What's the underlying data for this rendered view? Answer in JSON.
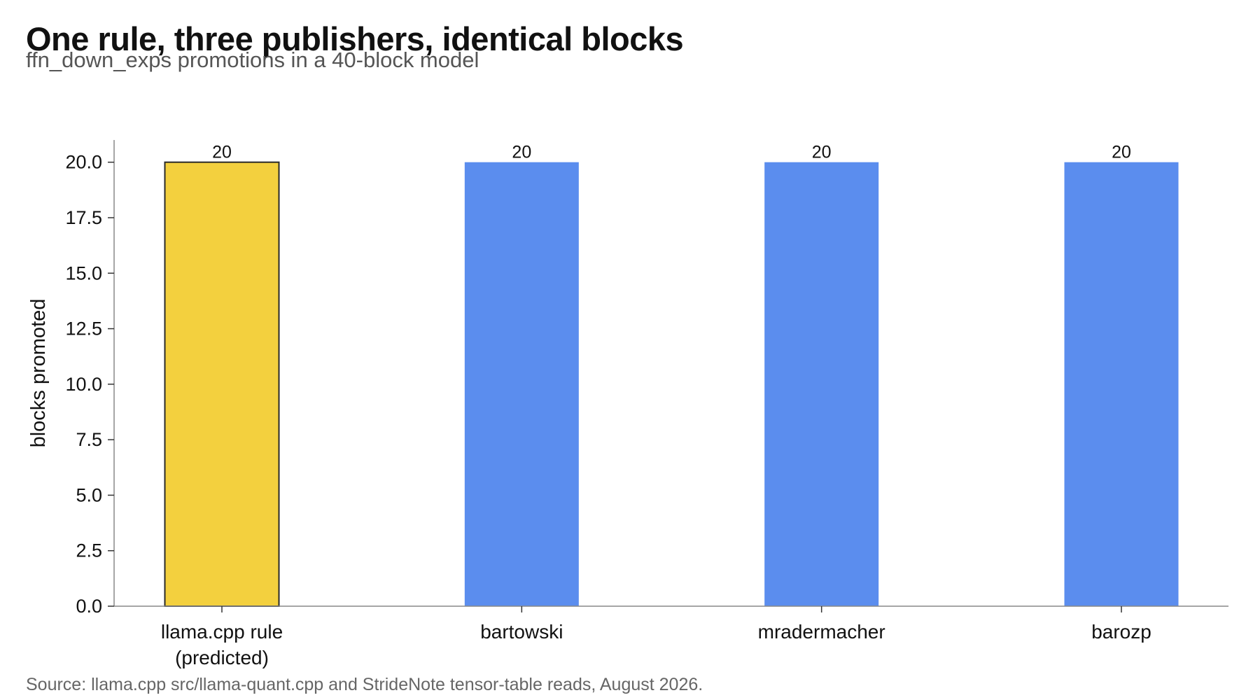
{
  "title": "One rule, three publishers, identical blocks",
  "subtitle": "ffn_down_exps promotions in a 40-block model",
  "source": "Source: llama.cpp src/llama-quant.cpp and StrideNote tensor-table reads, August 2026.",
  "chart_data": {
    "type": "bar",
    "categories": [
      "llama.cpp rule\n(predicted)",
      "bartowski",
      "mradermacher",
      "barozp"
    ],
    "values": [
      20,
      20,
      20,
      20
    ],
    "data_labels": [
      "20",
      "20",
      "20",
      "20"
    ],
    "ylabel": "blocks promoted",
    "xlabel": "",
    "ylim": [
      0,
      21
    ],
    "yticks": [
      0.0,
      2.5,
      5.0,
      7.5,
      10.0,
      12.5,
      15.0,
      17.5,
      20.0
    ],
    "ytick_labels": [
      "0.0",
      "2.5",
      "5.0",
      "7.5",
      "10.0",
      "12.5",
      "15.0",
      "17.5",
      "20.0"
    ],
    "bar_colors": [
      "#F3D03E",
      "#5B8DEE",
      "#5B8DEE",
      "#5B8DEE"
    ],
    "highlight_outline": "#2a2a2a",
    "grid": false,
    "legend": "none"
  }
}
